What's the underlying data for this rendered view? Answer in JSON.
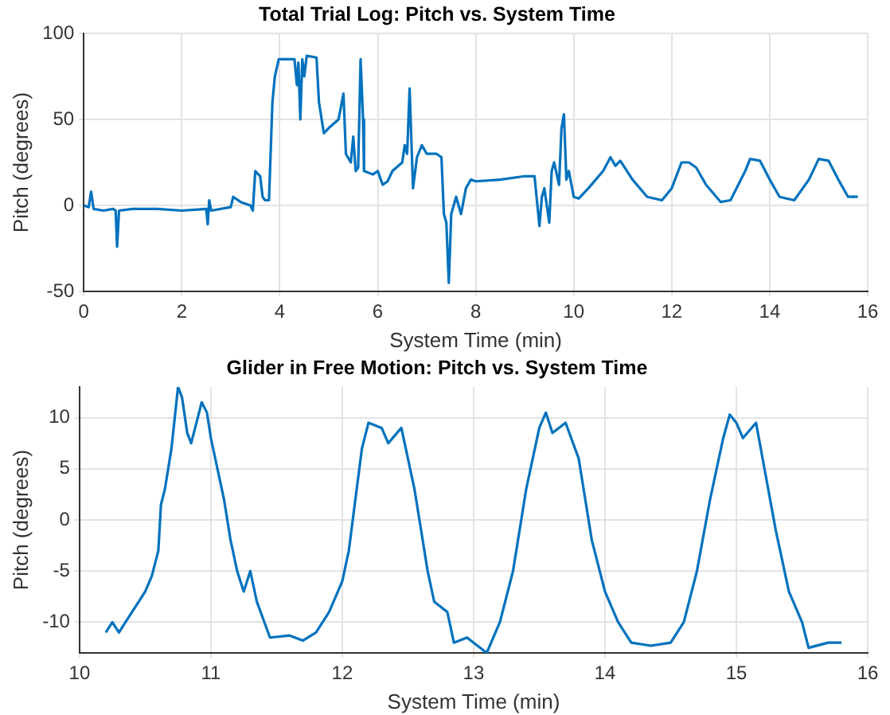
{
  "chart_data": [
    {
      "type": "line",
      "title": "Total Trial Log: Pitch vs. System Time",
      "xlabel": "System Time (min)",
      "ylabel": "Pitch (degrees)",
      "xlim": [
        0,
        16
      ],
      "xticks": [
        0,
        2,
        4,
        6,
        8,
        10,
        12,
        14,
        16
      ],
      "ylim": [
        -50,
        100
      ],
      "yticks": [
        -50,
        0,
        50,
        100
      ],
      "grid": true,
      "legend": false,
      "marker": "none",
      "line_style": "solid",
      "series": [
        {
          "color": "#0072bd",
          "x": [
            0,
            0.1,
            0.15,
            0.2,
            0.4,
            0.6,
            0.65,
            0.68,
            0.72,
            1,
            1.5,
            2,
            2.5,
            2.53,
            2.56,
            2.6,
            3,
            3.05,
            3.2,
            3.4,
            3.45,
            3.5,
            3.6,
            3.65,
            3.7,
            3.78,
            3.85,
            3.9,
            3.98,
            4.2,
            4.3,
            4.35,
            4.38,
            4.42,
            4.46,
            4.5,
            4.55,
            4.75,
            4.8,
            4.9,
            5,
            5.2,
            5.3,
            5.35,
            5.45,
            5.5,
            5.55,
            5.6,
            5.65,
            5.7,
            5.72,
            5.9,
            6,
            6.1,
            6.2,
            6.3,
            6.5,
            6.55,
            6.6,
            6.65,
            6.72,
            6.8,
            6.9,
            7,
            7.2,
            7.3,
            7.35,
            7.4,
            7.45,
            7.5,
            7.6,
            7.7,
            7.8,
            7.9,
            8,
            8.5,
            9,
            9.2,
            9.3,
            9.35,
            9.4,
            9.5,
            9.55,
            9.6,
            9.7,
            9.75,
            9.8,
            9.85,
            9.9,
            10,
            10.1,
            10.3,
            10.6,
            10.75,
            10.85,
            10.95,
            11.2,
            11.5,
            11.8,
            12,
            12.2,
            12.35,
            12.5,
            12.7,
            13,
            13.2,
            13.5,
            13.6,
            13.8,
            14,
            14.2,
            14.5,
            14.8,
            15,
            15.2,
            15.4,
            15.6,
            15.8
          ],
          "values": [
            0,
            -1,
            8,
            -2,
            -3,
            -2,
            -3,
            -24,
            -3,
            -2,
            -2,
            -3,
            -2,
            -11,
            3,
            -3,
            -1,
            5,
            2,
            0,
            -3,
            20,
            17,
            5,
            3,
            3,
            60,
            75,
            85,
            85,
            85,
            70,
            83,
            50,
            85,
            75,
            87,
            86,
            60,
            42,
            45,
            50,
            65,
            30,
            25,
            40,
            20,
            22,
            85,
            50,
            20,
            18,
            20,
            12,
            14,
            20,
            25,
            35,
            30,
            68,
            10,
            28,
            35,
            30,
            30,
            28,
            -5,
            -10,
            -45,
            -5,
            5,
            -5,
            10,
            15,
            14,
            15,
            17,
            17,
            -12,
            5,
            10,
            -10,
            20,
            25,
            12,
            45,
            53,
            15,
            20,
            5,
            4,
            10,
            20,
            28,
            23,
            26,
            15,
            5,
            3,
            10,
            25,
            25,
            22,
            12,
            2,
            3,
            20,
            27,
            26,
            15,
            5,
            3,
            15,
            27,
            26,
            15,
            5,
            5
          ]
        }
      ]
    },
    {
      "type": "line",
      "title": "Glider in Free Motion: Pitch vs. System Time",
      "xlabel": "System Time (min)",
      "ylabel": "Pitch (degrees)",
      "xlim": [
        10,
        16
      ],
      "xticks": [
        10,
        11,
        12,
        13,
        14,
        15,
        16
      ],
      "ylim": [
        -13,
        13
      ],
      "yticks": [
        -10,
        -5,
        0,
        5,
        10
      ],
      "grid": true,
      "legend": false,
      "marker": "none",
      "line_style": "solid",
      "series": [
        {
          "color": "#0072bd",
          "x": [
            10.2,
            10.25,
            10.3,
            10.35,
            10.4,
            10.45,
            10.5,
            10.55,
            10.6,
            10.62,
            10.65,
            10.7,
            10.75,
            10.78,
            10.82,
            10.85,
            10.9,
            10.93,
            10.97,
            11,
            11.05,
            11.1,
            11.15,
            11.2,
            11.25,
            11.3,
            11.35,
            11.45,
            11.6,
            11.7,
            11.8,
            11.9,
            12,
            12.05,
            12.1,
            12.15,
            12.2,
            12.3,
            12.35,
            12.45,
            12.5,
            12.55,
            12.6,
            12.65,
            12.7,
            12.8,
            12.85,
            12.95,
            13,
            13.1,
            13.2,
            13.3,
            13.4,
            13.5,
            13.55,
            13.6,
            13.7,
            13.8,
            13.9,
            14,
            14.1,
            14.2,
            14.35,
            14.5,
            14.6,
            14.7,
            14.8,
            14.9,
            14.95,
            15,
            15.05,
            15.15,
            15.2,
            15.3,
            15.4,
            15.5,
            15.55,
            15.7,
            15.8
          ],
          "values": [
            -11,
            -10,
            -11,
            -10,
            -9,
            -8,
            -7,
            -5.5,
            -3,
            1.5,
            3,
            7,
            13,
            12,
            8.5,
            7.5,
            10,
            11.5,
            10.5,
            8,
            5,
            2,
            -2,
            -5,
            -7,
            -5,
            -8,
            -11.5,
            -11.3,
            -11.8,
            -11,
            -9,
            -6,
            -3,
            2,
            7,
            9.5,
            9,
            7.5,
            9,
            6,
            3,
            -1,
            -5,
            -8,
            -9,
            -12,
            -11.5,
            -12,
            -13,
            -10,
            -5,
            3,
            9,
            10.5,
            8.5,
            9.5,
            6,
            -2,
            -7,
            -10,
            -12,
            -12.3,
            -12,
            -10,
            -5,
            2,
            8,
            10.3,
            9.5,
            8,
            9.5,
            6,
            -1,
            -7,
            -10,
            -12.5,
            -12,
            -12
          ]
        }
      ]
    }
  ]
}
